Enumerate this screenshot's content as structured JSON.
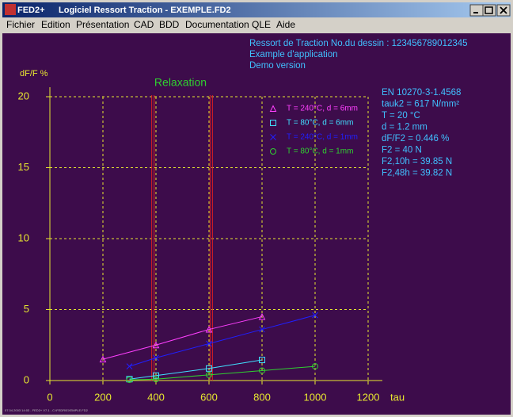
{
  "window": {
    "app_name": "FED2+",
    "title": "Logiciel Ressort Traction  -  EXEMPLE.FD2",
    "menu": [
      "Fichier",
      "Edition",
      "Présentation",
      "CAD",
      "BDD",
      "Documentation",
      "QLE",
      "Aide"
    ]
  },
  "header": [
    "Ressort de Traction   No.du dessin : 123456789012345",
    "Example d'application",
    "Demo version"
  ],
  "info": [
    "EN 10270-3-1.4568",
    "tauk2 = 617 N/mm²",
    "T = 20 °C",
    "d = 1.2 mm",
    "dF/F2 = 0.446 %",
    "F2 = 40 N",
    "F2,10h = 39.85 N",
    "F2,48h = 39.82 N"
  ],
  "status": "07.04.2003 14:03 - FED2+ V7.1 - C:\\FEDR\\EXEMPLE.FD2",
  "chart_data": {
    "type": "line",
    "title": "Relaxation",
    "y_label": "dF/F %",
    "x_label": "tau",
    "xlim": [
      0,
      1200
    ],
    "xticks": [
      0,
      200,
      400,
      600,
      800,
      1000,
      1200
    ],
    "ylim": [
      0,
      20
    ],
    "yticks": [
      0,
      5,
      10,
      15,
      20
    ],
    "grid": true,
    "reference_lines": [
      390,
      610
    ],
    "reference_color": "#e02020",
    "series": [
      {
        "name": "T = 240°C,  d = 6mm",
        "color": "#ff40ff",
        "marker": "triangle",
        "x": [
          200,
          400,
          600,
          800
        ],
        "values": [
          1.5,
          2.5,
          3.6,
          4.5
        ]
      },
      {
        "name": "T = 80°C,  d = 6mm",
        "color": "#40e0ff",
        "marker": "square",
        "x": [
          300,
          400,
          600,
          800
        ],
        "values": [
          0.1,
          0.35,
          0.85,
          1.45
        ]
      },
      {
        "name": "T = 240°C,  d = 1mm",
        "color": "#2020ff",
        "marker": "cross",
        "x": [
          300,
          400,
          600,
          800,
          1000
        ],
        "values": [
          1.0,
          1.6,
          2.6,
          3.6,
          4.6
        ]
      },
      {
        "name": "T = 80°C,  d = 1mm",
        "color": "#30d030",
        "marker": "circle",
        "x": [
          300,
          400,
          600,
          800,
          1000
        ],
        "values": [
          0.05,
          0.1,
          0.4,
          0.7,
          1.0
        ]
      }
    ]
  }
}
